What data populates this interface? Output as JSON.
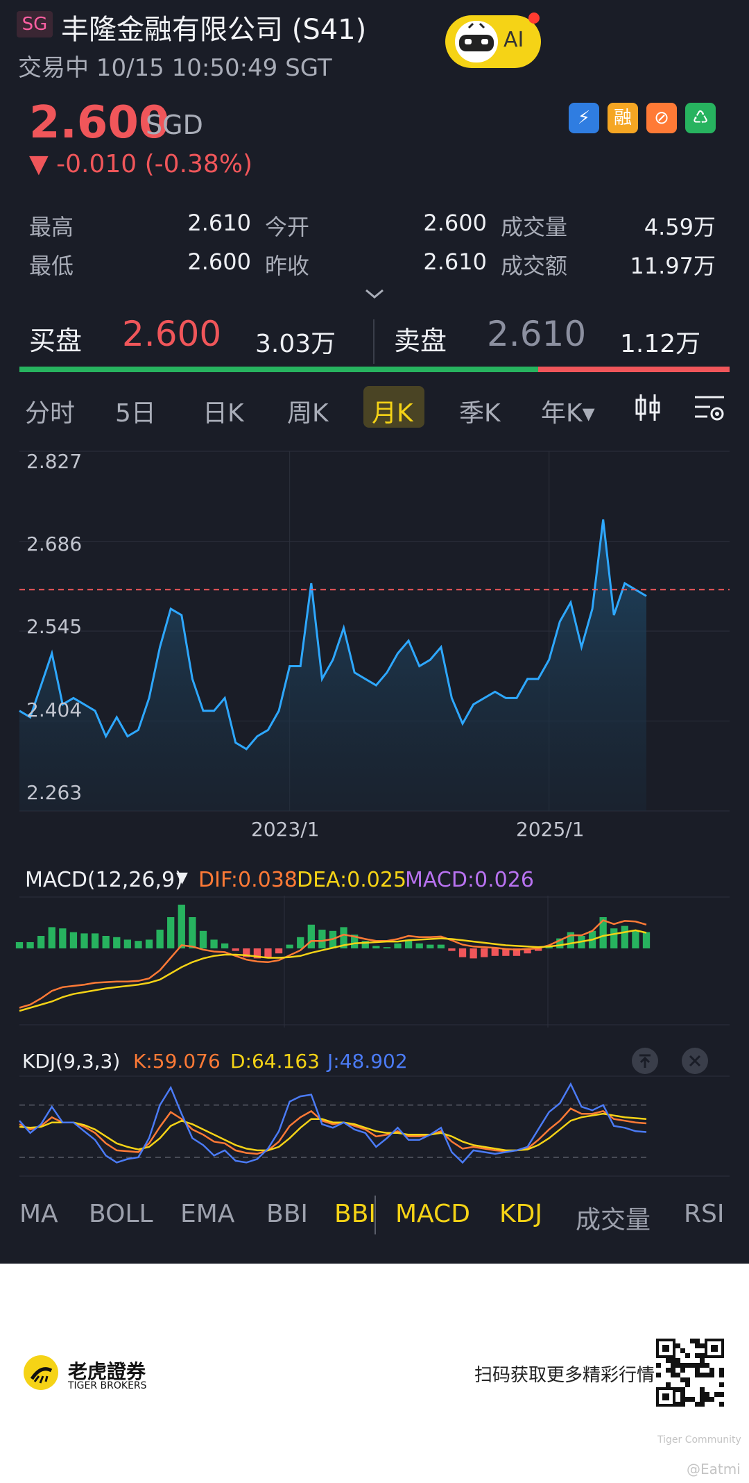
{
  "header": {
    "market_badge": "SG",
    "title": "丰隆金融有限公司 (S41)",
    "status": "交易中 10/15 10:50:49 SGT",
    "ai_label": "AI"
  },
  "quote": {
    "price": "2.600",
    "currency": "SGD",
    "change": "▼ -0.010 (-0.38%)",
    "tags": [
      {
        "icon": "lightning-icon",
        "text": "⚡",
        "color": "#2f7de1"
      },
      {
        "icon": "margin-icon",
        "text": "融",
        "color": "#f5a623"
      },
      {
        "icon": "no-short-icon",
        "text": "⊘",
        "color": "#ff7a36"
      },
      {
        "icon": "dividend-icon",
        "text": "♺",
        "color": "#27b35f"
      }
    ]
  },
  "stats": [
    {
      "label": "最高",
      "value": "2.610"
    },
    {
      "label": "今开",
      "value": "2.600"
    },
    {
      "label": "成交量",
      "value": "4.59万"
    },
    {
      "label": "最低",
      "value": "2.600"
    },
    {
      "label": "昨收",
      "value": "2.610"
    },
    {
      "label": "成交额",
      "value": "11.97万"
    }
  ],
  "orderbook": {
    "bid_label": "买盘",
    "bid_price": "2.600",
    "bid_volume": "3.03万",
    "ask_label": "卖盘",
    "ask_price": "2.610",
    "ask_volume": "1.12万"
  },
  "tabs": [
    "分时",
    "5日",
    "日K",
    "周K",
    "月K",
    "季K",
    "年K▾"
  ],
  "active_tab": "月K",
  "chart_data": [
    {
      "type": "area",
      "title": "",
      "ylim": [
        2.263,
        2.827
      ],
      "yticks": [
        "2.827",
        "2.686",
        "2.545",
        "2.404",
        "2.263"
      ],
      "xticks": [
        {
          "label": "2023/1",
          "x": "2023-01"
        },
        {
          "label": "2025/1",
          "x": "2025-01"
        }
      ],
      "reference_price": 2.61,
      "x": [
        "2020-12",
        "2021-01",
        "2021-02",
        "2021-03",
        "2021-04",
        "2021-05",
        "2021-06",
        "2021-07",
        "2021-08",
        "2021-09",
        "2021-10",
        "2021-11",
        "2021-12",
        "2022-01",
        "2022-02",
        "2022-03",
        "2022-04",
        "2022-05",
        "2022-06",
        "2022-07",
        "2022-08",
        "2022-09",
        "2022-10",
        "2022-11",
        "2022-12",
        "2023-01",
        "2023-02",
        "2023-03",
        "2023-04",
        "2023-05",
        "2023-06",
        "2023-07",
        "2023-08",
        "2023-09",
        "2023-10",
        "2023-11",
        "2023-12",
        "2024-01",
        "2024-02",
        "2024-03",
        "2024-04",
        "2024-05",
        "2024-06",
        "2024-07",
        "2024-08",
        "2024-09",
        "2024-10",
        "2024-11",
        "2024-12",
        "2025-01",
        "2025-02",
        "2025-03",
        "2025-04",
        "2025-05",
        "2025-06",
        "2025-07",
        "2025-08",
        "2025-09",
        "2025-10"
      ],
      "values": [
        2.42,
        2.41,
        2.46,
        2.51,
        2.43,
        2.44,
        2.43,
        2.42,
        2.38,
        2.41,
        2.38,
        2.39,
        2.44,
        2.52,
        2.58,
        2.57,
        2.47,
        2.42,
        2.42,
        2.44,
        2.37,
        2.36,
        2.38,
        2.39,
        2.42,
        2.49,
        2.49,
        2.62,
        2.47,
        2.5,
        2.55,
        2.48,
        2.47,
        2.46,
        2.48,
        2.51,
        2.53,
        2.49,
        2.5,
        2.52,
        2.44,
        2.4,
        2.43,
        2.44,
        2.45,
        2.44,
        2.44,
        2.47,
        2.47,
        2.5,
        2.56,
        2.59,
        2.52,
        2.58,
        2.72,
        2.57,
        2.62,
        2.61,
        2.6
      ]
    },
    {
      "type": "bar",
      "title": "MACD(12,26,9)",
      "series": [
        {
          "name": "DIF",
          "values": [
            -0.095,
            -0.09,
            -0.08,
            -0.068,
            -0.062,
            -0.06,
            -0.058,
            -0.055,
            -0.054,
            -0.053,
            -0.053,
            -0.052,
            -0.048,
            -0.035,
            -0.015,
            0.005,
            0.003,
            -0.002,
            -0.005,
            -0.006,
            -0.012,
            -0.018,
            -0.021,
            -0.022,
            -0.019,
            -0.011,
            -0.003,
            0.012,
            0.012,
            0.015,
            0.022,
            0.019,
            0.015,
            0.012,
            0.012,
            0.015,
            0.02,
            0.018,
            0.018,
            0.019,
            0.013,
            0.006,
            0.003,
            0.002,
            0.001,
            -0.001,
            -0.002,
            -0.001,
            0.0,
            0.005,
            0.013,
            0.021,
            0.021,
            0.028,
            0.045,
            0.039,
            0.044,
            0.043,
            0.038
          ]
        },
        {
          "name": "DEA",
          "values": [
            -0.1,
            -0.095,
            -0.09,
            -0.085,
            -0.078,
            -0.073,
            -0.07,
            -0.067,
            -0.064,
            -0.062,
            -0.06,
            -0.058,
            -0.055,
            -0.05,
            -0.04,
            -0.03,
            -0.022,
            -0.016,
            -0.012,
            -0.01,
            -0.01,
            -0.011,
            -0.013,
            -0.015,
            -0.015,
            -0.014,
            -0.012,
            -0.007,
            -0.003,
            0.001,
            0.005,
            0.008,
            0.009,
            0.01,
            0.011,
            0.011,
            0.013,
            0.014,
            0.015,
            0.016,
            0.015,
            0.013,
            0.011,
            0.009,
            0.007,
            0.005,
            0.004,
            0.003,
            0.002,
            0.003,
            0.005,
            0.008,
            0.011,
            0.014,
            0.02,
            0.023,
            0.026,
            0.029,
            0.025
          ]
        },
        {
          "name": "MACD",
          "values": [
            0.01,
            0.01,
            0.02,
            0.034,
            0.032,
            0.026,
            0.024,
            0.024,
            0.02,
            0.018,
            0.014,
            0.012,
            0.014,
            0.03,
            0.05,
            0.07,
            0.05,
            0.028,
            0.014,
            0.008,
            -0.004,
            -0.014,
            -0.016,
            -0.014,
            -0.008,
            0.006,
            0.018,
            0.038,
            0.03,
            0.028,
            0.034,
            0.022,
            0.012,
            0.004,
            0.002,
            0.008,
            0.014,
            0.008,
            0.006,
            0.006,
            -0.004,
            -0.014,
            -0.016,
            -0.014,
            -0.012,
            -0.012,
            -0.012,
            -0.008,
            -0.004,
            0.004,
            0.016,
            0.026,
            0.02,
            0.028,
            0.05,
            0.032,
            0.036,
            0.028,
            0.026
          ]
        }
      ],
      "legend": {
        "dif": "DIF:0.038",
        "dea": "DEA:0.025",
        "macd": "MACD:0.026"
      }
    },
    {
      "type": "line",
      "title": "KDJ(9,3,3)",
      "series": [
        {
          "name": "K",
          "values": [
            58,
            52,
            56,
            66,
            60,
            60,
            55,
            48,
            36,
            28,
            27,
            26,
            36,
            55,
            72,
            64,
            52,
            46,
            38,
            36,
            28,
            25,
            24,
            28,
            38,
            56,
            66,
            73,
            62,
            58,
            60,
            56,
            52,
            44,
            46,
            50,
            44,
            44,
            46,
            50,
            38,
            30,
            32,
            30,
            28,
            27,
            28,
            30,
            40,
            52,
            62,
            76,
            70,
            70,
            73,
            64,
            62,
            60,
            59
          ]
        },
        {
          "name": "D",
          "values": [
            55,
            54,
            55,
            60,
            60,
            60,
            57,
            52,
            44,
            36,
            32,
            29,
            32,
            42,
            56,
            62,
            58,
            52,
            46,
            40,
            34,
            30,
            28,
            28,
            32,
            42,
            54,
            64,
            64,
            60,
            60,
            58,
            54,
            50,
            48,
            48,
            46,
            46,
            46,
            48,
            44,
            38,
            34,
            32,
            30,
            28,
            28,
            29,
            34,
            42,
            52,
            62,
            66,
            68,
            70,
            68,
            66,
            65,
            64
          ]
        },
        {
          "name": "J",
          "values": [
            62,
            48,
            58,
            78,
            60,
            60,
            50,
            40,
            22,
            14,
            18,
            20,
            42,
            80,
            100,
            70,
            42,
            34,
            22,
            28,
            16,
            14,
            18,
            30,
            50,
            84,
            90,
            92,
            58,
            54,
            60,
            52,
            48,
            32,
            42,
            54,
            40,
            40,
            46,
            54,
            26,
            14,
            28,
            26,
            24,
            26,
            28,
            32,
            52,
            72,
            82,
            104,
            78,
            74,
            80,
            56,
            54,
            50,
            49
          ]
        }
      ],
      "legend": {
        "k": "K:59.076",
        "d": "D:64.163",
        "j": "J:48.902"
      }
    }
  ],
  "indicator_tabs": [
    {
      "label": "MA",
      "color": "#9da1ad"
    },
    {
      "label": "BOLL",
      "color": "#9da1ad"
    },
    {
      "label": "EMA",
      "color": "#9da1ad"
    },
    {
      "label": "BBI",
      "color": "#9da1ad"
    },
    {
      "label": "BBI",
      "color": "#f5d316"
    },
    {
      "label": "MACD",
      "color": "#f5d316"
    },
    {
      "label": "KDJ",
      "color": "#f5d316"
    },
    {
      "label": "成交量",
      "color": "#9da1ad"
    },
    {
      "label": "RSI",
      "color": "#9da1ad"
    }
  ],
  "footer": {
    "brand_cn": "老虎證券",
    "brand_en": "TIGER BROKERS",
    "cta": "扫码获取更多精彩行情",
    "watermark": "Tiger Community",
    "handle": "@Eatmi"
  },
  "colors": {
    "up": "#f0565a",
    "down": "#27b35f",
    "accent": "#f5d316",
    "line": "#2ea8ff",
    "dif": "#ff7a36",
    "dea": "#f5d316",
    "macd": "#b872f0",
    "kdj_j": "#4b7bf5"
  }
}
